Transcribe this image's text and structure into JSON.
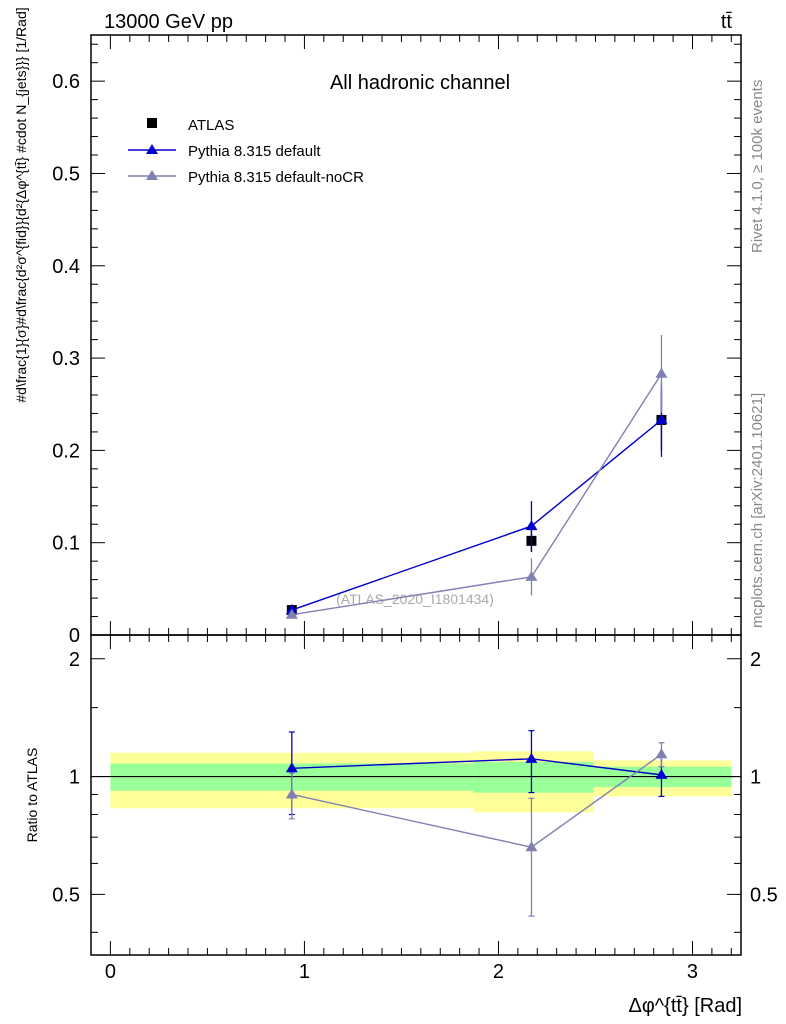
{
  "header": {
    "energy_label": "13000 GeV pp",
    "process_label": "tt̄"
  },
  "side_labels": {
    "rivet": "Rivet 4.1.0, ≥ 100k events",
    "mcplots": "mcplots.cern.ch [arXiv:2401.10621]"
  },
  "chart_data": [
    {
      "type": "scatter",
      "panel": "main",
      "title": "All hadronic channel",
      "watermark": "(ATLAS_2020_I1801434)",
      "ylabel": "#d\\frac{1}{σ}#d\\frac{d²σ^{fid}}{d²{Δφ^{tt̄} #cdot N_{jets}}} [1/Rad]",
      "xlim": [
        -0.1,
        3.25
      ],
      "ylim": [
        0,
        0.65
      ],
      "yticks": [
        0,
        0.1,
        0.2,
        0.3,
        0.4,
        0.5,
        0.6
      ],
      "ytick_labels": [
        "0",
        "0.1",
        "0.2",
        "0.3",
        "0.4",
        "0.5",
        "0.6"
      ],
      "legend_position": "top-left",
      "series": [
        {
          "name": "ATLAS",
          "marker": "square",
          "color": "#000000",
          "line": false,
          "x": [
            0.935,
            2.17,
            2.84
          ],
          "y": [
            0.027,
            0.102,
            0.233
          ],
          "yerr": [
            0.004,
            0.012,
            0.033
          ]
        },
        {
          "name": "Pythia 8.315 default",
          "marker": "triangle",
          "color": "#0000cc",
          "line": true,
          "x": [
            0.935,
            2.17,
            2.84
          ],
          "y": [
            0.027,
            0.118,
            0.233
          ],
          "yerr": [
            0.006,
            0.027,
            0.04
          ]
        },
        {
          "name": "Pythia 8.315 default-noCR",
          "marker": "triangle",
          "color": "#8080b3",
          "line": true,
          "x": [
            0.935,
            2.17,
            2.84
          ],
          "y": [
            0.022,
            0.063,
            0.283
          ],
          "yerr": [
            0.003,
            0.02,
            0.042
          ]
        }
      ]
    },
    {
      "type": "scatter",
      "panel": "ratio",
      "xlabel": "Δφ^{tt̄} [Rad]",
      "ylabel": "Ratio to ATLAS",
      "xlim": [
        -0.1,
        3.25
      ],
      "ylim": [
        0.35,
        2.3
      ],
      "xticks": [
        0,
        1,
        2,
        3
      ],
      "xtick_labels": [
        "0",
        "1",
        "2",
        "3"
      ],
      "yticks": [
        0.5,
        1,
        2
      ],
      "ytick_labels": [
        "0.5",
        "1",
        "2"
      ],
      "uncertainty_bands": [
        {
          "x_range": [
            0,
            1.87
          ],
          "inner": [
            0.92,
            1.08
          ],
          "outer": [
            0.83,
            1.15
          ]
        },
        {
          "x_range": [
            1.87,
            2.49
          ],
          "inner": [
            0.91,
            1.09
          ],
          "outer": [
            0.81,
            1.16
          ]
        },
        {
          "x_range": [
            2.49,
            3.2
          ],
          "inner": [
            0.94,
            1.06
          ],
          "outer": [
            0.89,
            1.1
          ]
        }
      ],
      "series": [
        {
          "name": "Pythia 8.315 default",
          "color": "#0000cc",
          "x": [
            0.935,
            2.17,
            2.84
          ],
          "y": [
            1.05,
            1.11,
            1.01
          ],
          "yerr": [
            0.25,
            0.2,
            0.12
          ]
        },
        {
          "name": "Pythia 8.315 default-noCR",
          "color": "#8080b3",
          "x": [
            0.935,
            2.17,
            2.84
          ],
          "y": [
            0.9,
            0.66,
            1.14
          ],
          "yerr": [
            0.12,
            0.22,
            0.08
          ]
        }
      ]
    }
  ]
}
